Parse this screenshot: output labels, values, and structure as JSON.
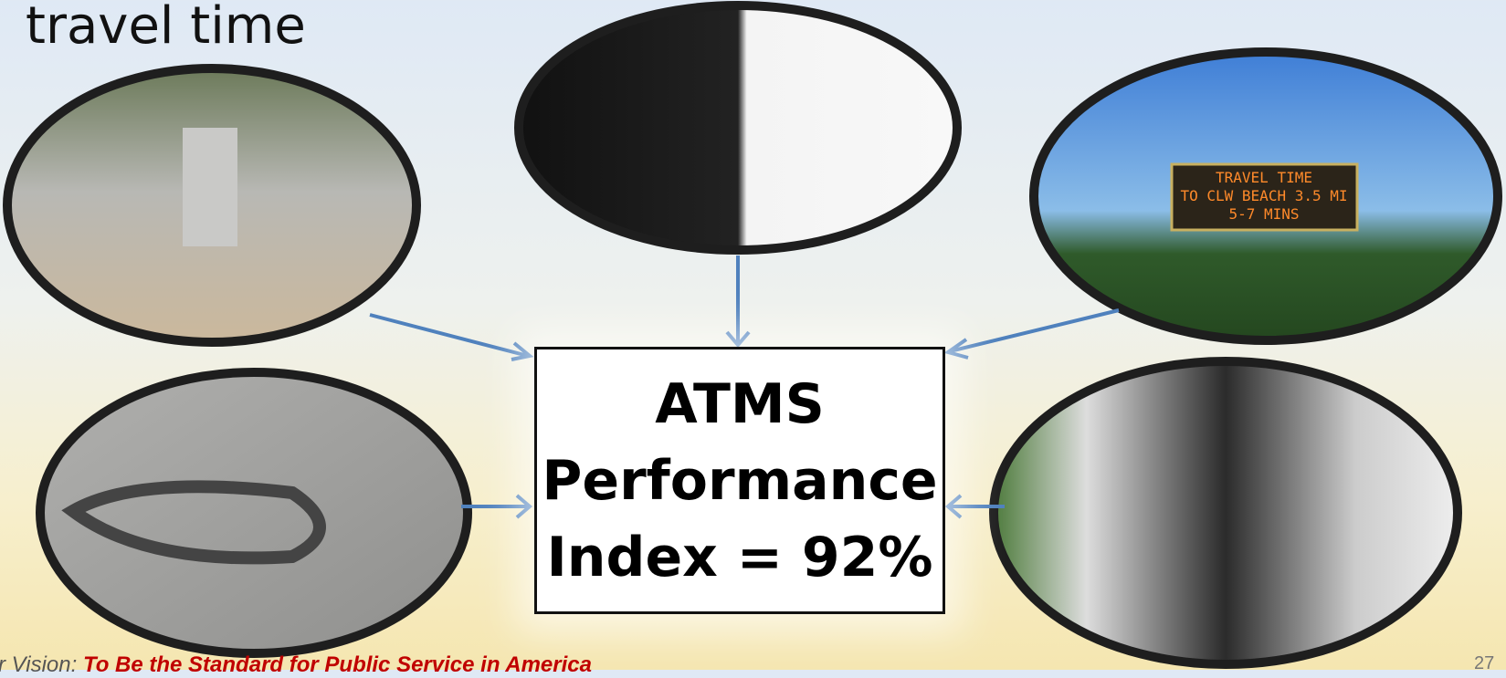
{
  "title": "travel time",
  "center_box": {
    "lines": [
      "ATMS",
      "Performance",
      "Index = 92%"
    ]
  },
  "sign": {
    "lines": [
      "TRAVEL TIME",
      "TO CLW BEACH 3.5 MI",
      "5-7 MINS"
    ]
  },
  "footer": {
    "prefix": "r Vision:",
    "motto": "To Be the Standard for Public Service in America"
  },
  "page_number": "27"
}
